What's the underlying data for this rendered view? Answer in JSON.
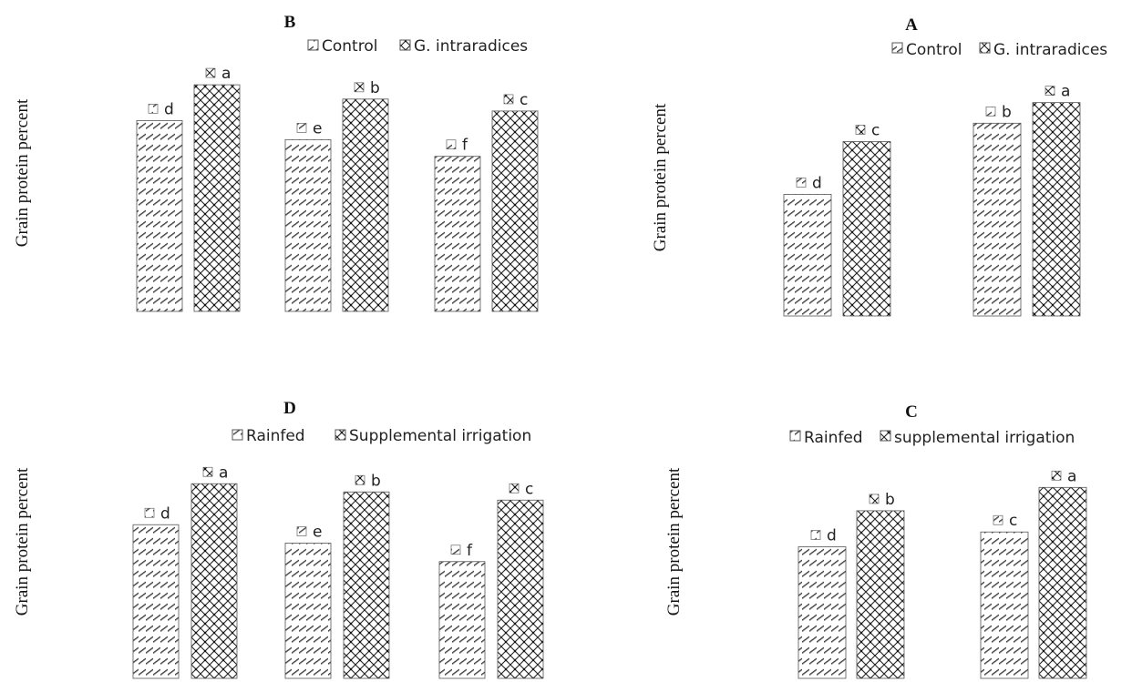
{
  "chart_data": [
    {
      "type": "bar",
      "title": "B",
      "ylabel": "Grain protein percent",
      "legend": [
        "Control",
        "G. intraradices"
      ],
      "legend_position": "top",
      "grid": false,
      "categories": [
        "",
        "",
        ""
      ],
      "ylim": [
        0,
        10
      ],
      "series": [
        {
          "name": "Control",
          "values": [
            8.0,
            7.2,
            6.5
          ],
          "letters": [
            "d",
            "e",
            "f"
          ]
        },
        {
          "name": "G. intraradices",
          "values": [
            9.5,
            8.9,
            8.4
          ],
          "letters": [
            "a",
            "b",
            "c"
          ]
        }
      ]
    },
    {
      "type": "bar",
      "title": "A",
      "ylabel": "Grain protein percent",
      "legend": [
        "Control",
        "G. intraradices"
      ],
      "legend_position": "top-right",
      "grid": false,
      "categories": [
        "",
        ""
      ],
      "ylim": [
        0,
        10
      ],
      "series": [
        {
          "name": "Control",
          "values": [
            5.3,
            8.4
          ],
          "letters": [
            "d",
            "b"
          ]
        },
        {
          "name": "G. intraradices",
          "values": [
            7.6,
            9.3
          ],
          "letters": [
            "c",
            "a"
          ]
        }
      ]
    },
    {
      "type": "bar",
      "title": "D",
      "ylabel": "Grain protein percent",
      "legend": [
        "Rainfed",
        "Supplemental irrigation"
      ],
      "legend_position": "top",
      "grid": false,
      "categories": [
        "",
        "",
        ""
      ],
      "ylim": [
        0,
        10
      ],
      "series": [
        {
          "name": "Rainfed",
          "values": [
            7.5,
            6.6,
            5.7
          ],
          "letters": [
            "d",
            "e",
            "f"
          ]
        },
        {
          "name": "Supplemental irrigation",
          "values": [
            9.5,
            9.1,
            8.7
          ],
          "letters": [
            "a",
            "b",
            "c"
          ]
        }
      ]
    },
    {
      "type": "bar",
      "title": "C",
      "ylabel": "Grain protein percent",
      "legend": [
        "Rainfed",
        "supplemental irrigation"
      ],
      "legend_position": "top",
      "grid": false,
      "categories": [
        "",
        ""
      ],
      "ylim": [
        0,
        10
      ],
      "series": [
        {
          "name": "Rainfed",
          "values": [
            6.2,
            6.9
          ],
          "letters": [
            "d",
            "c"
          ]
        },
        {
          "name": "supplemental irrigation",
          "values": [
            7.9,
            9.0
          ],
          "letters": [
            "b",
            "a"
          ]
        }
      ]
    }
  ],
  "colors": {
    "background": "#ffffff",
    "bar_outline": "#333333",
    "text": "#222222"
  }
}
